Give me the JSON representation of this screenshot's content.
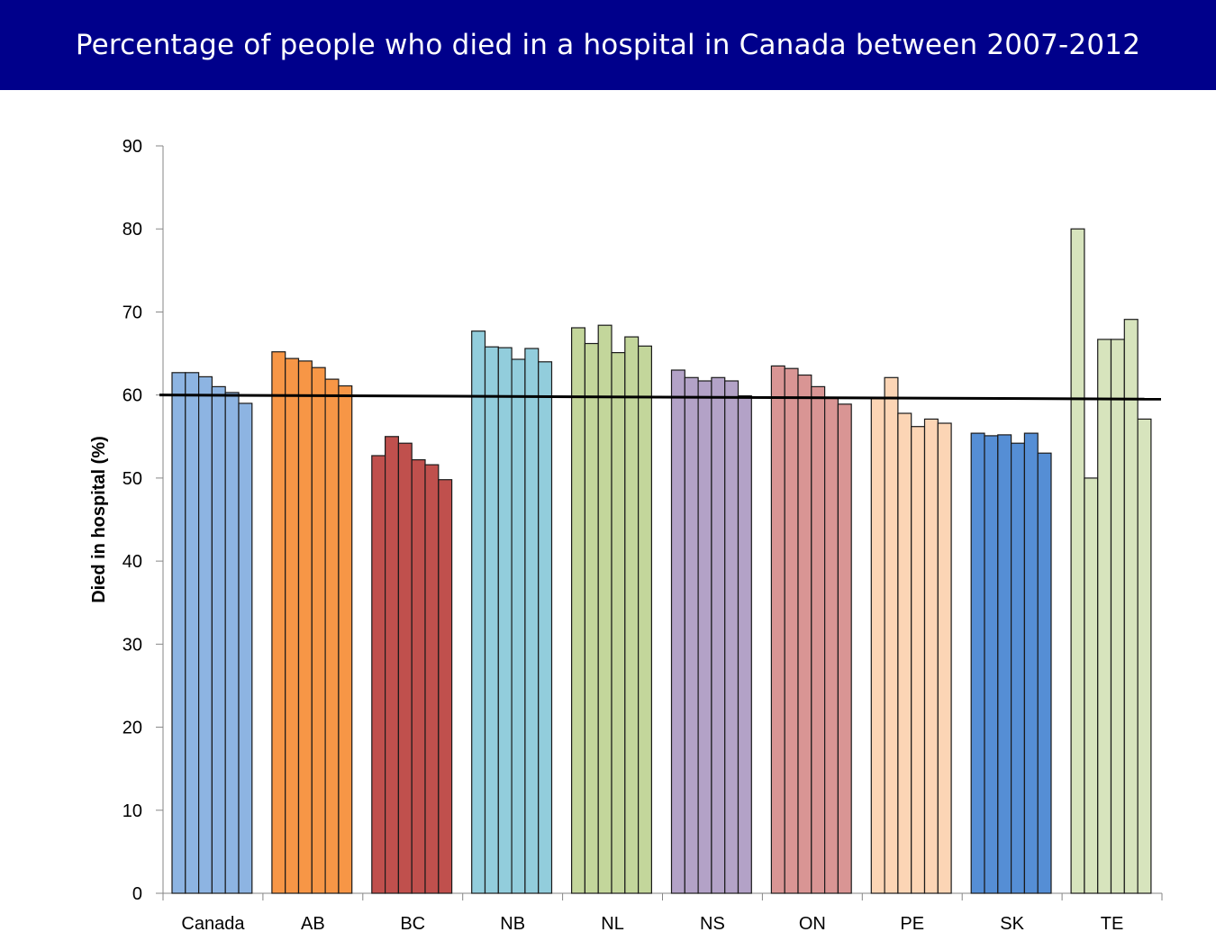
{
  "page": {
    "title": "Percentage of people who died in a hospital in Canada between 2007-2012",
    "title_bar_color": "#00008b"
  },
  "chart_data": {
    "type": "bar",
    "title": "Percentage of people who died in a hospital in Canada between 2007-2012",
    "xlabel": "",
    "ylabel": "Died in hospital (%)",
    "ylim": [
      0,
      90
    ],
    "yticks": [
      0,
      10,
      20,
      30,
      40,
      50,
      60,
      70,
      80,
      90
    ],
    "grid": false,
    "legend": "none",
    "reference_line": {
      "start": 60.0,
      "end": 59.5,
      "color": "#000000"
    },
    "groups": [
      {
        "category": "Canada",
        "color": "#8db4e2",
        "values": [
          62.7,
          62.7,
          62.2,
          61.0,
          60.3,
          59.0
        ]
      },
      {
        "category": "AB",
        "color": "#f79646",
        "values": [
          65.2,
          64.4,
          64.1,
          63.3,
          61.9,
          61.1
        ]
      },
      {
        "category": "BC",
        "color": "#c0504d",
        "values": [
          52.7,
          55.0,
          54.2,
          52.2,
          51.6,
          49.8
        ]
      },
      {
        "category": "NB",
        "color": "#92cddc",
        "values": [
          67.7,
          65.8,
          65.7,
          64.3,
          65.6,
          64.0
        ]
      },
      {
        "category": "NL",
        "color": "#c3d69b",
        "values": [
          68.1,
          66.2,
          68.4,
          65.1,
          67.0,
          65.9
        ]
      },
      {
        "category": "NS",
        "color": "#b3a2c7",
        "values": [
          63.0,
          62.1,
          61.7,
          62.1,
          61.7,
          59.9
        ]
      },
      {
        "category": "ON",
        "color": "#d99594",
        "values": [
          63.5,
          63.2,
          62.4,
          61.0,
          59.7,
          58.9
        ]
      },
      {
        "category": "PE",
        "color": "#fcd5b5",
        "values": [
          59.6,
          62.1,
          57.8,
          56.2,
          57.1,
          56.6
        ]
      },
      {
        "category": "SK",
        "color": "#558ed5",
        "values": [
          55.4,
          55.1,
          55.2,
          54.2,
          55.4,
          53.0
        ]
      },
      {
        "category": "TE",
        "color": "#d7e4bd",
        "values": [
          80.0,
          50.0,
          66.7,
          66.7,
          69.1,
          57.1
        ]
      }
    ]
  }
}
